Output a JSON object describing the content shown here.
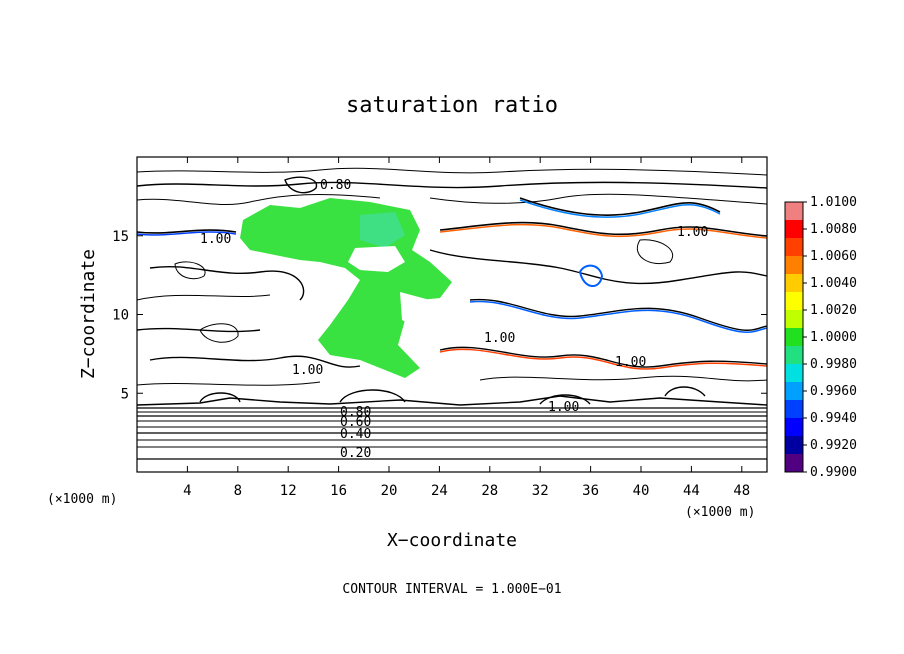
{
  "chart_data": {
    "type": "heatmap",
    "title": "saturation ratio",
    "xlabel": "X−coordinate",
    "ylabel": "Z−coordinate",
    "x_unit": "(×1000 m)",
    "y_unit": "(×1000 m)",
    "xlim": [
      0,
      50
    ],
    "ylim": [
      0,
      20
    ],
    "x_ticks": [
      4,
      8,
      12,
      16,
      20,
      24,
      28,
      32,
      36,
      40,
      44,
      48
    ],
    "y_ticks": [
      5,
      10,
      15
    ],
    "contour_interval_text": "CONTOUR INTERVAL = 1.000E−01",
    "contour_labels": [
      "0.20",
      "0.40",
      "0.60",
      "0.80",
      "1.00",
      "0.80"
    ],
    "colorbar": {
      "min": 0.99,
      "max": 1.01,
      "ticks": [
        "1.0100",
        "1.0080",
        "1.0060",
        "1.0040",
        "1.0020",
        "1.0000",
        "0.9980",
        "0.9960",
        "0.9940",
        "0.9920",
        "0.9900"
      ],
      "colors": [
        "#f08080",
        "#ff0000",
        "#ff4000",
        "#ff8000",
        "#ffcc00",
        "#ffff00",
        "#c0ff00",
        "#20e020",
        "#20e080",
        "#00e0e0",
        "#00a0ff",
        "#0040ff",
        "#0000ff",
        "#0000a0",
        "#500080"
      ]
    },
    "grid": false
  }
}
